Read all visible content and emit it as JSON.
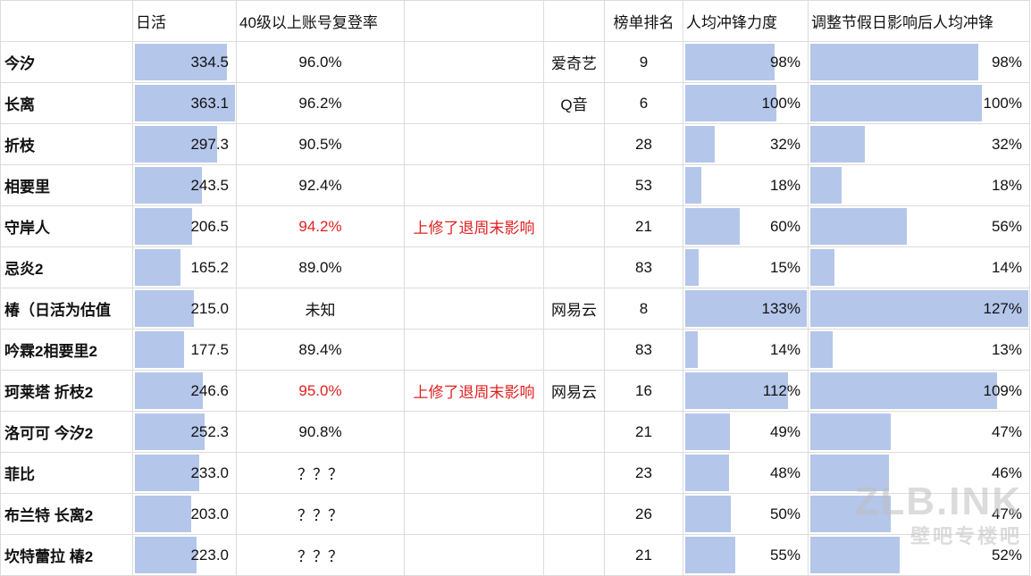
{
  "headers": {
    "name": "",
    "dau": "日活",
    "return_rate": "40级以上账号复登率",
    "note": "",
    "platform": "",
    "rank": "榜单排名",
    "push": "人均冲锋力度",
    "push_adj": "调整节假日影响后人均冲锋"
  },
  "rows": [
    {
      "name": "今汐",
      "dau": "334.5",
      "dau_v": 334.5,
      "rate": "96.0%",
      "rate_red": false,
      "note": "",
      "platform": "爱奇艺",
      "rank": "9",
      "push": "98%",
      "push_v": 98,
      "adj": "98%",
      "adj_v": 98
    },
    {
      "name": "长离",
      "dau": "363.1",
      "dau_v": 363.1,
      "rate": "96.2%",
      "rate_red": false,
      "note": "",
      "platform": "Q音",
      "rank": "6",
      "push": "100%",
      "push_v": 100,
      "adj": "100%",
      "adj_v": 100
    },
    {
      "name": "折枝",
      "dau": "297.3",
      "dau_v": 297.3,
      "rate": "90.5%",
      "rate_red": false,
      "note": "",
      "platform": "",
      "rank": "28",
      "push": "32%",
      "push_v": 32,
      "adj": "32%",
      "adj_v": 32
    },
    {
      "name": "相要里",
      "dau": "243.5",
      "dau_v": 243.5,
      "rate": "92.4%",
      "rate_red": false,
      "note": "",
      "platform": "",
      "rank": "53",
      "push": "18%",
      "push_v": 18,
      "adj": "18%",
      "adj_v": 18
    },
    {
      "name": "守岸人",
      "dau": "206.5",
      "dau_v": 206.5,
      "rate": "94.2%",
      "rate_red": true,
      "note": "上修了退周末影响",
      "platform": "",
      "rank": "21",
      "push": "60%",
      "push_v": 60,
      "adj": "56%",
      "adj_v": 56
    },
    {
      "name": "忌炎2",
      "dau": "165.2",
      "dau_v": 165.2,
      "rate": "89.0%",
      "rate_red": false,
      "note": "",
      "platform": "",
      "rank": "83",
      "push": "15%",
      "push_v": 15,
      "adj": "14%",
      "adj_v": 14
    },
    {
      "name": "椿（日活为估值",
      "dau": "215.0",
      "dau_v": 215.0,
      "rate": "未知",
      "rate_red": false,
      "note": "",
      "platform": "网易云",
      "rank": "8",
      "push": "133%",
      "push_v": 133,
      "adj": "127%",
      "adj_v": 127
    },
    {
      "name": "吟霖2相要里2",
      "dau": "177.5",
      "dau_v": 177.5,
      "rate": "89.4%",
      "rate_red": false,
      "note": "",
      "platform": "",
      "rank": "83",
      "push": "14%",
      "push_v": 14,
      "adj": "13%",
      "adj_v": 13
    },
    {
      "name": "珂莱塔 折枝2",
      "dau": "246.6",
      "dau_v": 246.6,
      "rate": "95.0%",
      "rate_red": true,
      "note": "上修了退周末影响",
      "platform": "网易云",
      "rank": "16",
      "push": "112%",
      "push_v": 112,
      "adj": "109%",
      "adj_v": 109
    },
    {
      "name": "洛可可 今汐2",
      "dau": "252.3",
      "dau_v": 252.3,
      "rate": "90.8%",
      "rate_red": false,
      "note": "",
      "platform": "",
      "rank": "21",
      "push": "49%",
      "push_v": 49,
      "adj": "47%",
      "adj_v": 47
    },
    {
      "name": "菲比",
      "dau": "233.0",
      "dau_v": 233.0,
      "rate": "？？？",
      "rate_red": false,
      "note": "",
      "platform": "",
      "rank": "23",
      "push": "48%",
      "push_v": 48,
      "adj": "46%",
      "adj_v": 46
    },
    {
      "name": "布兰特 长离2",
      "dau": "203.0",
      "dau_v": 203.0,
      "rate": "？？？",
      "rate_red": false,
      "note": "",
      "platform": "",
      "rank": "26",
      "push": "50%",
      "push_v": 50,
      "adj": "47%",
      "adj_v": 47
    },
    {
      "name": "坎特蕾拉 椿2",
      "dau": "223.0",
      "dau_v": 223.0,
      "rate": "？？？",
      "rate_red": false,
      "note": "",
      "platform": "",
      "rank": "21",
      "push": "55%",
      "push_v": 55,
      "adj": "52%",
      "adj_v": 52
    }
  ],
  "scales": {
    "dau_max": 363.1,
    "push_max": 133,
    "adj_max": 127
  },
  "watermark": {
    "big": "ZLB.INK",
    "small": "壁吧专楼吧"
  },
  "colors": {
    "bar": "#b4c6ea",
    "red": "#e02020"
  }
}
